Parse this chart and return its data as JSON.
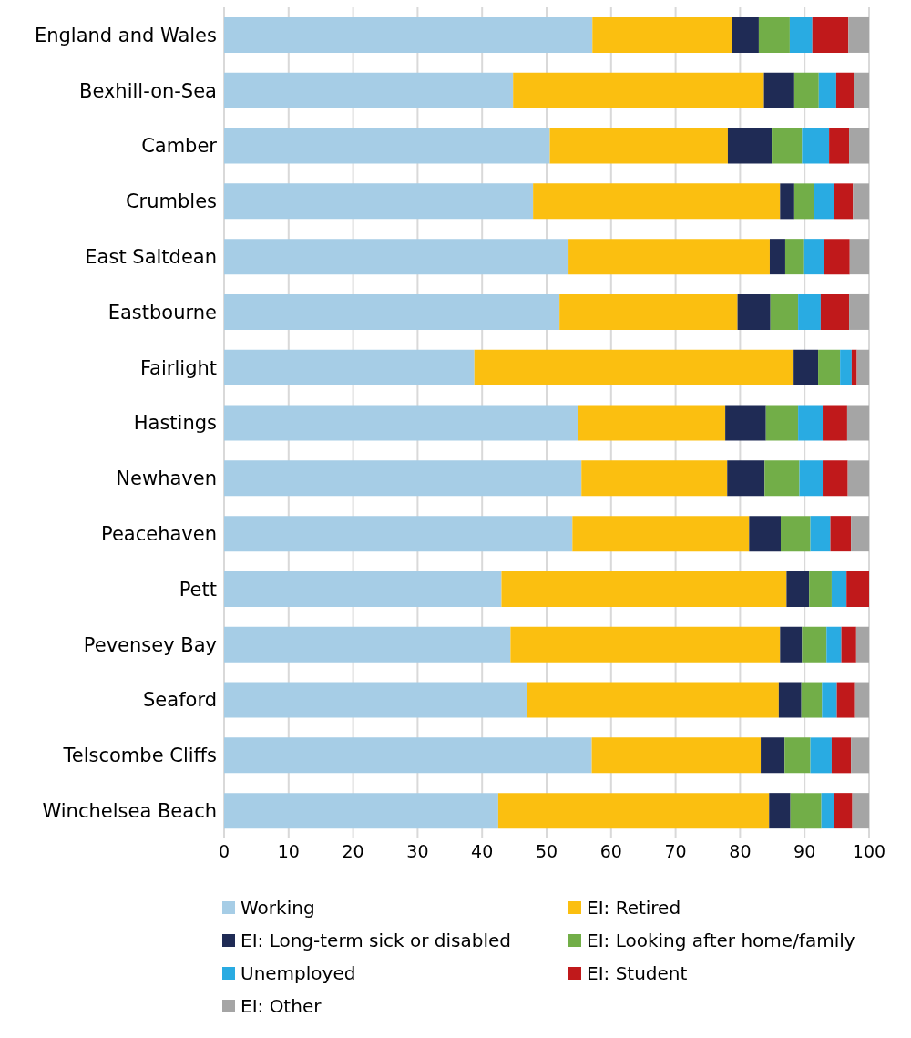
{
  "chart_data": {
    "type": "bar",
    "orientation": "horizontal",
    "stacked": true,
    "categories": [
      "England and Wales",
      "Bexhill-on-Sea",
      "Camber",
      "Crumbles",
      "East Saltdean",
      "Eastbourne",
      "Fairlight",
      "Hastings",
      "Newhaven",
      "Peacehaven",
      "Pett",
      "Pevensey Bay",
      "Seaford",
      "Telscombe Cliffs",
      "Winchelsea Beach"
    ],
    "series": [
      {
        "name": "Working",
        "color": "#a6cde6",
        "values": [
          57.1,
          44.8,
          50.5,
          47.9,
          53.4,
          52.0,
          38.8,
          54.9,
          55.4,
          54.0,
          43.0,
          44.4,
          46.9,
          57.0,
          42.5
        ]
      },
      {
        "name": "EI: Retired",
        "color": "#fbbf10",
        "values": [
          21.7,
          38.9,
          27.6,
          38.3,
          31.2,
          27.6,
          49.5,
          22.8,
          22.6,
          27.4,
          44.2,
          41.8,
          39.1,
          26.2,
          42.0
        ]
      },
      {
        "name": "EI: Long-term sick or disabled",
        "color": "#1f2b55",
        "values": [
          4.1,
          4.7,
          6.8,
          2.2,
          2.4,
          5.1,
          3.8,
          6.3,
          5.8,
          4.9,
          3.5,
          3.4,
          3.5,
          3.7,
          3.3
        ]
      },
      {
        "name": "EI: Looking after home/family",
        "color": "#72ae48",
        "values": [
          4.8,
          3.8,
          4.7,
          3.1,
          2.8,
          4.3,
          3.4,
          5.0,
          5.4,
          4.6,
          3.5,
          3.8,
          3.2,
          4.0,
          4.8
        ]
      },
      {
        "name": "Unemployed",
        "color": "#29abe2",
        "values": [
          3.5,
          2.7,
          4.2,
          3.0,
          3.2,
          3.5,
          1.8,
          3.8,
          3.6,
          3.1,
          2.3,
          2.3,
          2.3,
          3.3,
          2.0
        ]
      },
      {
        "name": "EI: Student",
        "color": "#c0191b",
        "values": [
          5.6,
          2.7,
          3.1,
          3.0,
          4.0,
          4.4,
          0.8,
          3.8,
          3.9,
          3.2,
          3.5,
          2.3,
          2.7,
          3.0,
          2.8
        ]
      },
      {
        "name": "EI: Other",
        "color": "#a5a5a5",
        "values": [
          3.2,
          2.4,
          3.1,
          2.5,
          3.0,
          3.1,
          1.9,
          3.4,
          3.3,
          2.8,
          0,
          2.0,
          2.3,
          2.8,
          2.6
        ]
      }
    ],
    "xlim": [
      0,
      100
    ],
    "xticks": [
      0,
      10,
      20,
      30,
      40,
      50,
      60,
      70,
      80,
      90,
      100
    ],
    "grid": "x",
    "legend": "bottom"
  }
}
